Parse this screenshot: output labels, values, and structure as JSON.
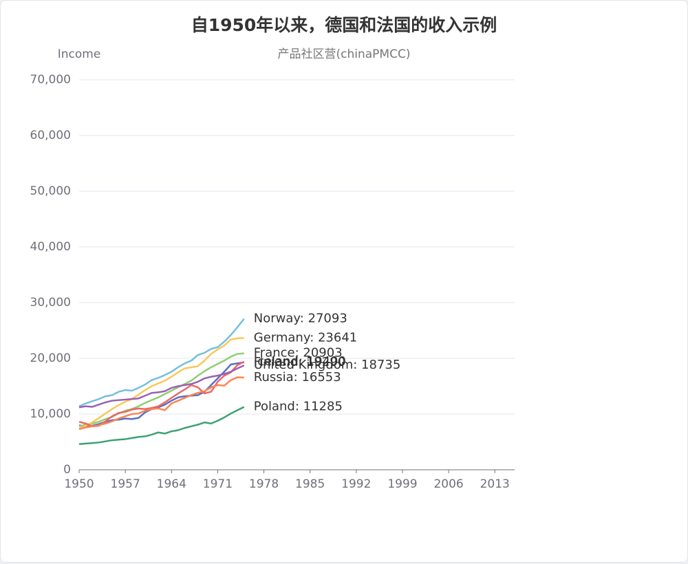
{
  "chart_data": {
    "type": "line",
    "title": "自1950年以来，德国和法国的收入示例",
    "subtitle": "产品社区营(chinaPMCC)",
    "y_axis_label": "Income",
    "x": [
      1950,
      1951,
      1952,
      1953,
      1954,
      1955,
      1956,
      1957,
      1958,
      1959,
      1960,
      1961,
      1962,
      1963,
      1964,
      1965,
      1966,
      1967,
      1968,
      1969,
      1970,
      1971,
      1972,
      1973,
      1974,
      1975
    ],
    "xlim": [
      1950,
      2016
    ],
    "xticks": [
      1950,
      1957,
      1964,
      1971,
      1978,
      1985,
      1992,
      1999,
      2006,
      2013
    ],
    "ylim": [
      0,
      70000
    ],
    "yticks": [
      0,
      {
        "value": 10000,
        "label": "10,000"
      },
      {
        "value": 20000,
        "label": "20,000"
      },
      {
        "value": 30000,
        "label": "30,000"
      },
      {
        "value": 40000,
        "label": "40,000"
      },
      {
        "value": 50000,
        "label": "50,000"
      },
      {
        "value": 60000,
        "label": "60,000"
      },
      {
        "value": 70000,
        "label": "70,000"
      }
    ],
    "grid": true,
    "series": [
      {
        "name": "Finland",
        "color": "#5470c6",
        "end_label": "Finland: 19290",
        "values": [
          8000,
          7700,
          7900,
          8200,
          8600,
          8900,
          9000,
          9200,
          9100,
          9300,
          10300,
          10900,
          11200,
          11700,
          12400,
          13000,
          13200,
          13300,
          13400,
          14000,
          15200,
          16400,
          17600,
          18900,
          19100,
          19290
        ]
      },
      {
        "name": "France",
        "color": "#91cc75",
        "end_label": "France: 20903",
        "values": [
          7800,
          8100,
          8300,
          8600,
          9100,
          9500,
          10100,
          10600,
          10900,
          11400,
          12000,
          12500,
          13000,
          13600,
          14200,
          14800,
          15400,
          16000,
          16900,
          17700,
          18400,
          19000,
          19600,
          20300,
          20800,
          20903
        ]
      },
      {
        "name": "Germany",
        "color": "#fac858",
        "end_label": "Germany: 23641",
        "values": [
          7400,
          7900,
          8500,
          9300,
          10100,
          10900,
          11600,
          12200,
          12700,
          13500,
          14300,
          15000,
          15500,
          16000,
          16700,
          17500,
          18200,
          18400,
          18600,
          19600,
          20800,
          21600,
          22300,
          23400,
          23600,
          23641
        ]
      },
      {
        "name": "Iceland",
        "color": "#ee6666",
        "end_label": "Iceland: 19400",
        "values": [
          8600,
          8300,
          7800,
          7900,
          8700,
          9600,
          10200,
          10400,
          10800,
          11000,
          10900,
          11100,
          11400,
          12100,
          12900,
          13700,
          14400,
          15200,
          14800,
          13700,
          14000,
          15800,
          16900,
          17500,
          18800,
          19400
        ]
      },
      {
        "name": "Norway",
        "color": "#73c0de",
        "end_label": "Norway: 27093",
        "values": [
          11400,
          11900,
          12300,
          12700,
          13200,
          13400,
          14000,
          14300,
          14200,
          14700,
          15300,
          16100,
          16500,
          17000,
          17600,
          18400,
          19100,
          19600,
          20600,
          21000,
          21700,
          22000,
          23000,
          24200,
          25600,
          27093
        ]
      },
      {
        "name": "Poland",
        "color": "#3ba272",
        "end_label": "Poland: 11285",
        "values": [
          4600,
          4700,
          4800,
          4900,
          5100,
          5300,
          5400,
          5500,
          5700,
          5900,
          6000,
          6300,
          6700,
          6500,
          6900,
          7100,
          7500,
          7800,
          8100,
          8500,
          8300,
          8800,
          9400,
          10100,
          10700,
          11285
        ]
      },
      {
        "name": "Russia",
        "color": "#fc8452",
        "end_label": "Russia: 16553",
        "values": [
          7300,
          7600,
          7800,
          8000,
          8300,
          8700,
          9200,
          9600,
          10000,
          10100,
          10600,
          10900,
          11000,
          10700,
          11900,
          12400,
          12900,
          13400,
          13800,
          14100,
          14800,
          15200,
          15100,
          16100,
          16600,
          16553
        ]
      },
      {
        "name": "United Kingdom",
        "color": "#9a60b4",
        "end_label": "United Kingdom: 18735",
        "values": [
          11200,
          11400,
          11300,
          11700,
          12100,
          12400,
          12500,
          12600,
          12700,
          12800,
          13300,
          13800,
          13900,
          14100,
          14700,
          15000,
          15200,
          15400,
          15800,
          16400,
          16700,
          16900,
          17200,
          17600,
          18200,
          18735
        ]
      }
    ]
  }
}
